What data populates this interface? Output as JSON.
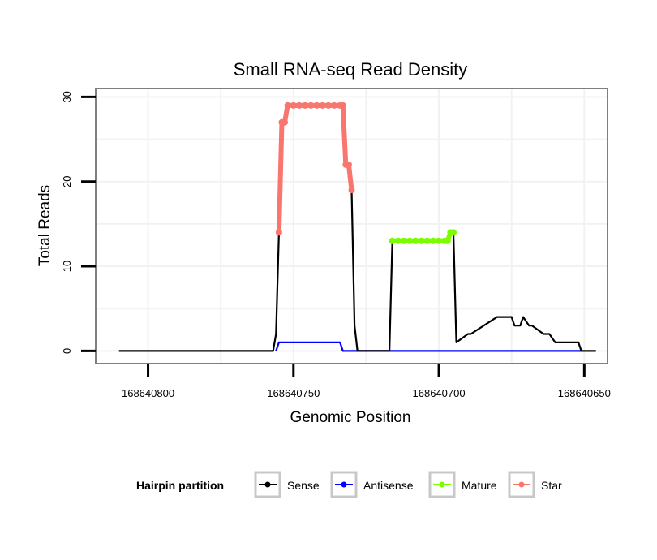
{
  "chart_data": {
    "type": "line",
    "title": "Small RNA-seq Read Density",
    "xlabel": "Genomic Position",
    "ylabel": "Total Reads",
    "x_reversed": true,
    "xlim": [
      168640818,
      168640642
    ],
    "ylim": [
      -1.5,
      31
    ],
    "x_ticks": [
      168640800,
      168640750,
      168640700,
      168640650
    ],
    "x_tick_labels": [
      "168640800",
      "168640750",
      "168640700",
      "168640650"
    ],
    "y_ticks": [
      0,
      10,
      20,
      30
    ],
    "y_tick_labels": [
      "0",
      "10",
      "20",
      "30"
    ],
    "grid": true,
    "legend": {
      "title": "Hairpin partition",
      "position": "bottom",
      "entries": [
        {
          "label": "Sense",
          "color": "#000000"
        },
        {
          "label": "Antisense",
          "color": "#0000ff"
        },
        {
          "label": "Mature",
          "color": "#7cfc00"
        },
        {
          "label": "Star",
          "color": "#f8766d"
        }
      ]
    },
    "series": [
      {
        "name": "Sense",
        "color": "#000000",
        "x": [
          168640810,
          168640757,
          168640756,
          168640755,
          168640754,
          168640753,
          168640752,
          168640751,
          168640750,
          168640748,
          168640744,
          168640740,
          168640736,
          168640734,
          168640733,
          168640732,
          168640731,
          168640730,
          168640729,
          168640728,
          168640727,
          168640717,
          168640716,
          168640714,
          168640712,
          168640709,
          168640700,
          168640697,
          168640696,
          168640695,
          168640694,
          168640690,
          168640689,
          168640680,
          168640679,
          168640675,
          168640674,
          168640672,
          168640671,
          168640669,
          168640668,
          168640664,
          168640662,
          168640660,
          168640652,
          168640651,
          168640646
        ],
        "y": [
          0,
          0,
          2,
          14,
          27,
          27,
          29,
          29,
          29,
          29,
          29,
          29,
          29,
          29,
          29,
          22,
          22,
          19,
          3,
          0,
          0,
          0,
          13,
          13,
          13,
          13,
          13,
          13,
          14,
          14,
          1,
          2,
          2,
          4,
          4,
          4,
          3,
          3,
          4,
          3,
          3,
          2,
          2,
          1,
          1,
          0,
          0
        ]
      },
      {
        "name": "Antisense",
        "color": "#0000ff",
        "x": [
          168640756,
          168640755,
          168640734,
          168640733,
          168640651
        ],
        "y": [
          0,
          1,
          1,
          0,
          0
        ]
      },
      {
        "name": "Mature",
        "color": "#7cfc00",
        "x": [
          168640716,
          168640714,
          168640712,
          168640710,
          168640708,
          168640706,
          168640704,
          168640702,
          168640700,
          168640698,
          168640697,
          168640696,
          168640695
        ],
        "y": [
          13,
          13,
          13,
          13,
          13,
          13,
          13,
          13,
          13,
          13,
          13,
          14,
          14
        ]
      },
      {
        "name": "Star",
        "color": "#f8766d",
        "x": [
          168640755,
          168640754,
          168640753,
          168640752,
          168640750,
          168640748,
          168640746,
          168640744,
          168640742,
          168640740,
          168640738,
          168640736,
          168640734,
          168640733,
          168640732,
          168640731,
          168640730
        ],
        "y": [
          14,
          27,
          27,
          29,
          29,
          29,
          29,
          29,
          29,
          29,
          29,
          29,
          29,
          29,
          22,
          22,
          19
        ]
      }
    ]
  }
}
